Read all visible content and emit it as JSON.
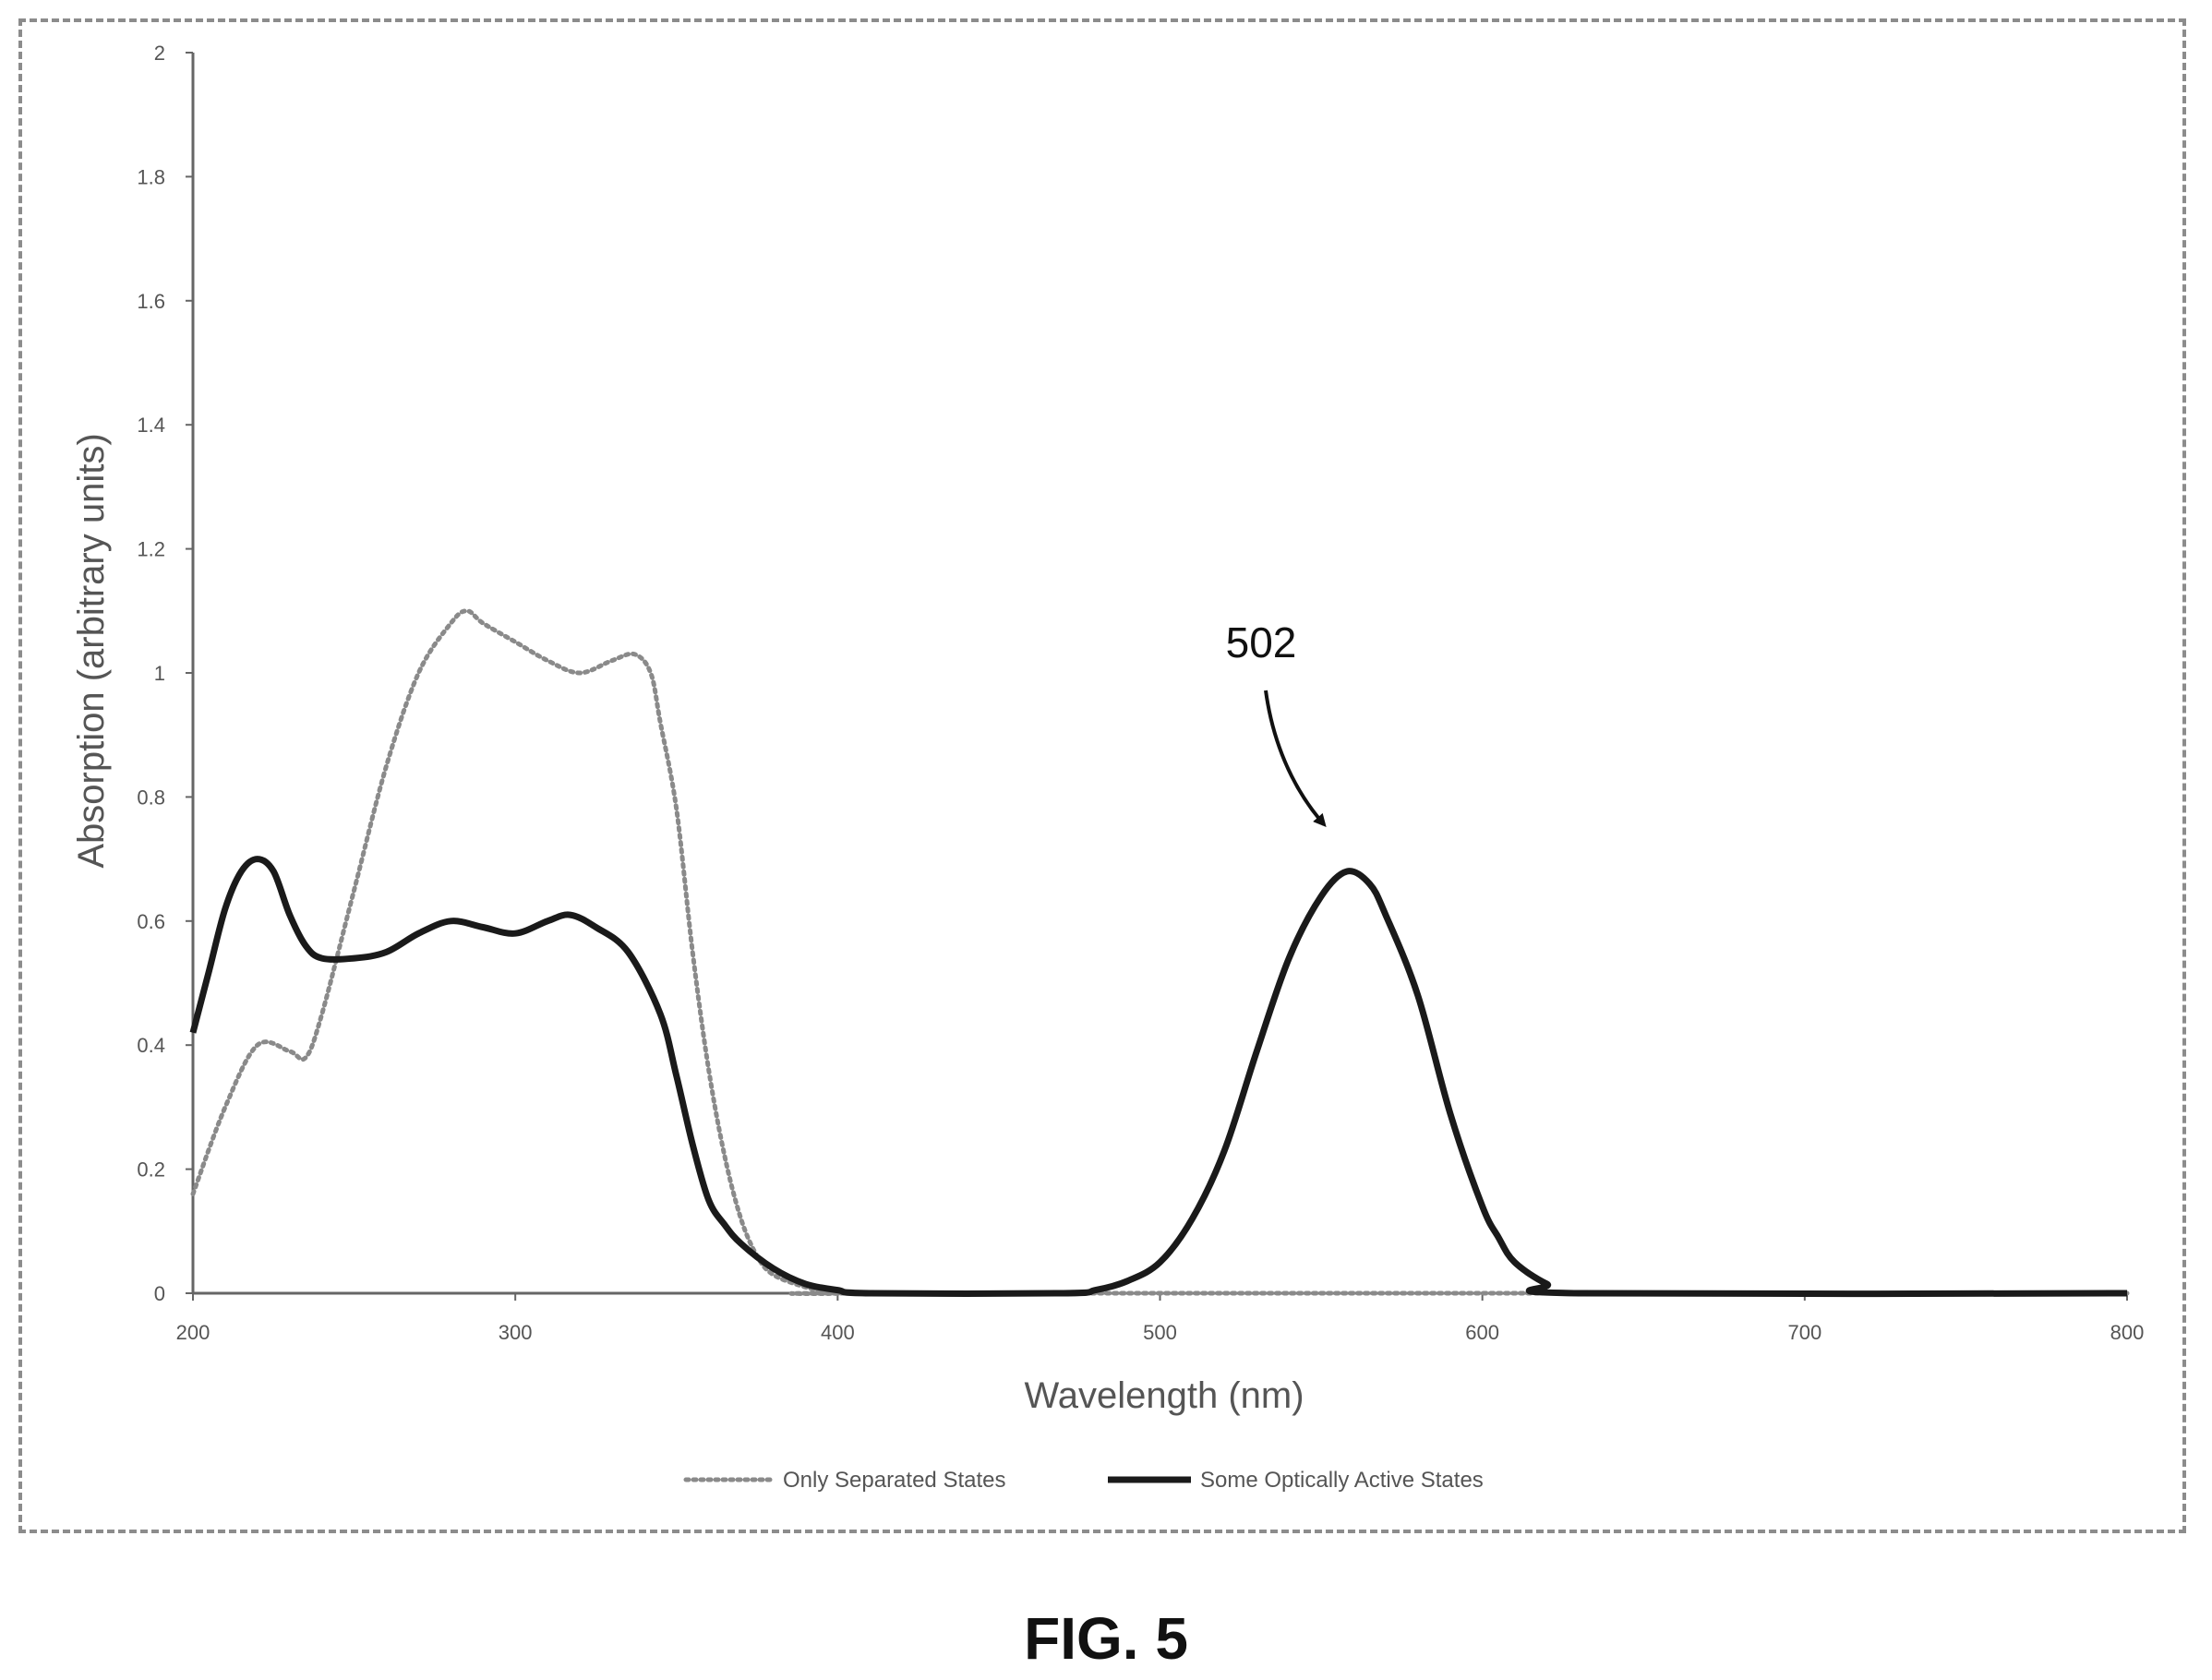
{
  "figure": {
    "caption": "FIG. 5",
    "annotation_label": "502"
  },
  "colors": {
    "dotted_series": "#8a8a8a",
    "solid_series": "#1a1a1a",
    "axis": "#666666"
  },
  "chart_data": {
    "type": "line",
    "title": "",
    "xlabel": "Wavelength (nm)",
    "ylabel": "Absorption (arbitrary units)",
    "xlim": [
      200,
      800
    ],
    "ylim": [
      0,
      2
    ],
    "x_ticks": [
      "200",
      "300",
      "400",
      "500",
      "600",
      "700",
      "800"
    ],
    "y_ticks": [
      "0",
      "0.2",
      "0.4",
      "0.6",
      "0.8",
      "1",
      "1.2",
      "1.4",
      "1.6",
      "1.8",
      "2"
    ],
    "grid": false,
    "legend_position": "bottom",
    "series": [
      {
        "name": "Only Separated States",
        "style": "dotted",
        "points": [
          [
            200,
            0.16
          ],
          [
            210,
            0.3
          ],
          [
            220,
            0.4
          ],
          [
            230,
            0.39
          ],
          [
            235,
            0.38
          ],
          [
            240,
            0.45
          ],
          [
            250,
            0.65
          ],
          [
            260,
            0.85
          ],
          [
            270,
            1.0
          ],
          [
            280,
            1.08
          ],
          [
            285,
            1.1
          ],
          [
            290,
            1.08
          ],
          [
            300,
            1.05
          ],
          [
            310,
            1.02
          ],
          [
            320,
            1.0
          ],
          [
            330,
            1.02
          ],
          [
            337,
            1.03
          ],
          [
            342,
            1.0
          ],
          [
            345,
            0.92
          ],
          [
            350,
            0.78
          ],
          [
            355,
            0.55
          ],
          [
            360,
            0.36
          ],
          [
            365,
            0.22
          ],
          [
            370,
            0.12
          ],
          [
            375,
            0.06
          ],
          [
            380,
            0.03
          ],
          [
            390,
            0.01
          ],
          [
            400,
            0.0
          ],
          [
            420,
            0.0
          ],
          [
            800,
            0.0
          ]
        ]
      },
      {
        "name": "Some Optically Active States",
        "style": "solid",
        "points": [
          [
            200,
            0.42
          ],
          [
            205,
            0.52
          ],
          [
            210,
            0.62
          ],
          [
            215,
            0.68
          ],
          [
            220,
            0.7
          ],
          [
            225,
            0.68
          ],
          [
            230,
            0.61
          ],
          [
            235,
            0.56
          ],
          [
            240,
            0.54
          ],
          [
            250,
            0.54
          ],
          [
            260,
            0.55
          ],
          [
            270,
            0.58
          ],
          [
            280,
            0.6
          ],
          [
            290,
            0.59
          ],
          [
            300,
            0.58
          ],
          [
            310,
            0.6
          ],
          [
            317,
            0.61
          ],
          [
            325,
            0.59
          ],
          [
            335,
            0.55
          ],
          [
            345,
            0.45
          ],
          [
            350,
            0.35
          ],
          [
            355,
            0.24
          ],
          [
            360,
            0.15
          ],
          [
            365,
            0.11
          ],
          [
            370,
            0.08
          ],
          [
            380,
            0.04
          ],
          [
            390,
            0.015
          ],
          [
            400,
            0.005
          ],
          [
            410,
            0.0
          ],
          [
            470,
            0.0
          ],
          [
            480,
            0.005
          ],
          [
            490,
            0.02
          ],
          [
            500,
            0.05
          ],
          [
            510,
            0.12
          ],
          [
            520,
            0.23
          ],
          [
            530,
            0.39
          ],
          [
            540,
            0.54
          ],
          [
            550,
            0.64
          ],
          [
            558,
            0.68
          ],
          [
            565,
            0.66
          ],
          [
            570,
            0.61
          ],
          [
            580,
            0.48
          ],
          [
            590,
            0.29
          ],
          [
            600,
            0.14
          ],
          [
            605,
            0.09
          ],
          [
            610,
            0.05
          ],
          [
            620,
            0.015
          ],
          [
            630,
            0.0
          ],
          [
            800,
            0.0
          ]
        ]
      }
    ],
    "annotations": [
      {
        "text": "502",
        "points_to": [
          558,
          0.68
        ]
      }
    ]
  }
}
